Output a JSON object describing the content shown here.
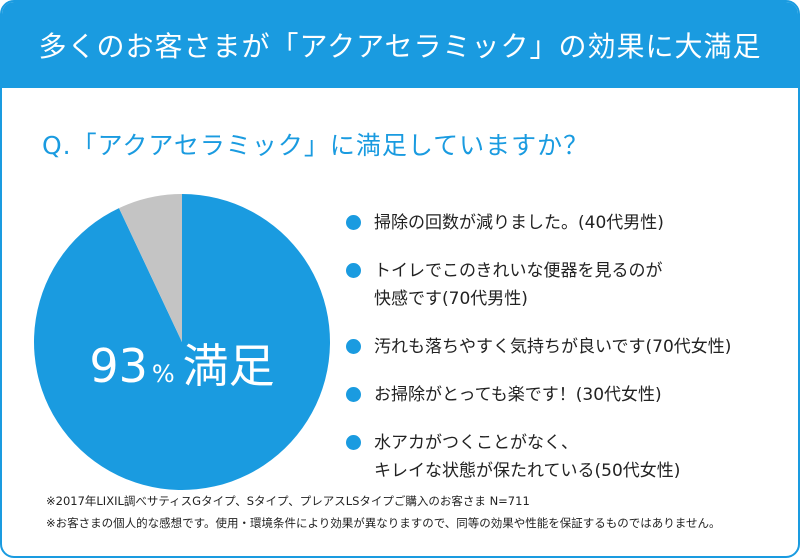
{
  "header": {
    "title": "多くのお客さまが「アクアセラミック」の効果に大満足"
  },
  "question": "Q.「アクアセラミック」に満足していますか？",
  "chart_data": {
    "type": "pie",
    "slices": [
      {
        "label": "満足",
        "value": 93,
        "color": "#1a9be0"
      },
      {
        "label": "",
        "value": 7,
        "color": "#c4c4c4"
      }
    ],
    "center_label": {
      "value": "93",
      "unit": "%",
      "text": "満足"
    }
  },
  "comments": [
    {
      "lines": [
        "掃除の回数が減りました。(40代男性)"
      ]
    },
    {
      "lines": [
        "トイレでこのきれいな便器を見るのが",
        "快感です(70代男性)"
      ]
    },
    {
      "lines": [
        "汚れも落ちやすく気持ちが良いです(70代女性)"
      ]
    },
    {
      "lines": [
        "お掃除がとっても楽です！(30代女性)"
      ]
    },
    {
      "lines": [
        "水アカがつくことがなく、",
        "キレイな状態が保たれている(50代女性)"
      ]
    }
  ],
  "notes": [
    "※2017年LIXIL調べサティスGタイプ、Sタイプ、プレアスLSタイプご購入のお客さま N=711",
    "※お客さまの個人的な感想です。使用・環境条件により効果が異なりますので、同等の効果や性能を保証するものではありません。"
  ],
  "colors": {
    "accent": "#1a9be0",
    "remainder": "#c4c4c4"
  }
}
